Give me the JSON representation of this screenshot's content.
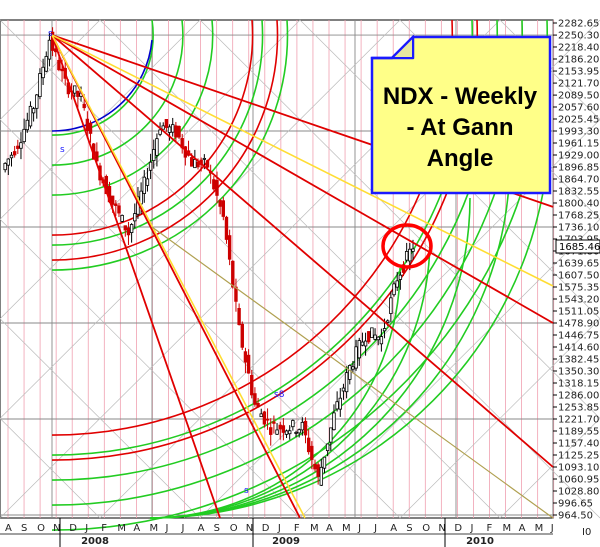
{
  "chart_data": {
    "type": "candlestick",
    "instrument": "NDX",
    "current_price": "1685.46",
    "y_ticks": [
      "2282.65",
      "2250.30",
      "2218.40",
      "2186.20",
      "2153.95",
      "2121.70",
      "2089.50",
      "2057.60",
      "2025.45",
      "1993.30",
      "1961.15",
      "1929.00",
      "1896.85",
      "1864.70",
      "1832.55",
      "1800.40",
      "1768.25",
      "1736.10",
      "1703.95",
      "1671.80",
      "1639.65",
      "1607.50",
      "1575.35",
      "1543.20",
      "1511.05",
      "1478.90",
      "1446.75",
      "1414.60",
      "1382.45",
      "1350.30",
      "1318.15",
      "1286.00",
      "1253.85",
      "1221.70",
      "1189.55",
      "1157.40",
      "1125.25",
      "1093.10",
      "1060.95",
      "1028.80",
      "996.65",
      "964.50"
    ],
    "x_month_labels": [
      "A",
      "S",
      "O",
      "N",
      "D",
      "J",
      "F",
      "M",
      "A",
      "M",
      "J",
      "J",
      "A",
      "S",
      "O",
      "N",
      "D",
      "J",
      "F",
      "M",
      "A",
      "M",
      "J",
      "J",
      "A",
      "S",
      "O",
      "N",
      "D",
      "J",
      "F",
      "M",
      "A",
      "M",
      "J"
    ],
    "x_year_labels": [
      "2008",
      "2009",
      "2010"
    ],
    "axis_extra_label": "I0",
    "annotations": [
      "s",
      "s",
      "s8",
      "s"
    ],
    "note_text": [
      "NDX - Weekly",
      "- At Gann",
      "Angle"
    ],
    "ylim": [
      964.5,
      2282.65
    ],
    "weekly_close_path": [
      {
        "date": "2007-08",
        "price": 1890
      },
      {
        "date": "2007-09",
        "price": 1960
      },
      {
        "date": "2007-10",
        "price": 2060
      },
      {
        "date": "2007-10-end",
        "price": 2240
      },
      {
        "date": "2007-11",
        "price": 2120
      },
      {
        "date": "2007-12",
        "price": 2080
      },
      {
        "date": "2008-01",
        "price": 1900
      },
      {
        "date": "2008-02",
        "price": 1800
      },
      {
        "date": "2008-03",
        "price": 1720
      },
      {
        "date": "2008-04",
        "price": 1850
      },
      {
        "date": "2008-05",
        "price": 2010
      },
      {
        "date": "2008-06",
        "price": 1990
      },
      {
        "date": "2008-07",
        "price": 1910
      },
      {
        "date": "2008-08",
        "price": 1900
      },
      {
        "date": "2008-09",
        "price": 1760
      },
      {
        "date": "2008-10",
        "price": 1460
      },
      {
        "date": "2008-11",
        "price": 1260
      },
      {
        "date": "2008-12",
        "price": 1200
      },
      {
        "date": "2009-01",
        "price": 1200
      },
      {
        "date": "2009-02",
        "price": 1200
      },
      {
        "date": "2009-03",
        "price": 1060
      },
      {
        "date": "2009-04",
        "price": 1230
      },
      {
        "date": "2009-05",
        "price": 1360
      },
      {
        "date": "2009-06",
        "price": 1450
      },
      {
        "date": "2009-07",
        "price": 1440
      },
      {
        "date": "2009-08",
        "price": 1600
      },
      {
        "date": "2009-09",
        "price": 1685.46
      }
    ]
  },
  "colors": {
    "background": "#ffffff",
    "grid_pink": "#f0a0b0",
    "grid_gray": "#888888",
    "up_candle": "#000000",
    "down_candle": "#cc0000",
    "gann_red": "#e00000",
    "gann_green": "#22cc22",
    "gann_yellow": "#ffdd33",
    "gann_blue": "#0000cc",
    "note_fill": "#ffff88",
    "note_border": "#1a1aff",
    "circle": "#ff0000"
  }
}
